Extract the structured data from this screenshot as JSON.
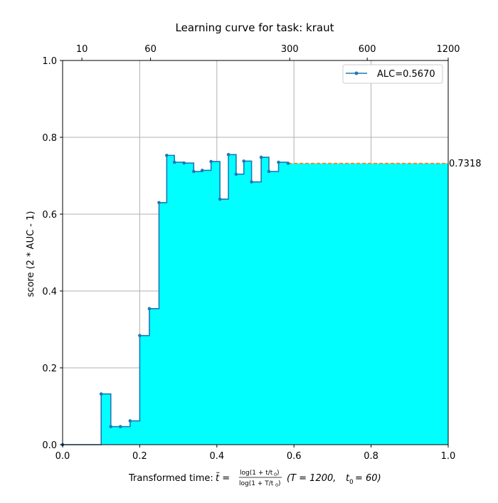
{
  "chart_data": {
    "type": "line",
    "title": "Learning curve for task: kraut",
    "ylabel": "score (2 * AUC - 1)",
    "xlabel_prefix": "Transformed time: ",
    "xlabel_fraction_num": "log(1 + t/t",
    "xlabel_fraction_den": "log(1 + T/t",
    "xlabel_suffix_T": "(T = 1200,",
    "xlabel_suffix_t0": "t",
    "xlabel_suffix_t0_value": "= 60)",
    "xlim": [
      0,
      1
    ],
    "ylim": [
      0,
      1
    ],
    "x_ticks": [
      "0.0",
      "0.2",
      "0.4",
      "0.6",
      "0.8",
      "1.0"
    ],
    "y_ticks": [
      "0.0",
      "0.2",
      "0.4",
      "0.6",
      "0.8",
      "1.0"
    ],
    "x_tick_values": [
      0,
      0.2,
      0.4,
      0.6,
      0.8,
      1.0
    ],
    "y_tick_values": [
      0,
      0.2,
      0.4,
      0.6,
      0.8,
      1.0
    ],
    "top_axis_ticks": [
      {
        "label": "10",
        "value": 0.05
      },
      {
        "label": "60",
        "value": 0.228
      },
      {
        "label": "300",
        "value": 0.589
      },
      {
        "label": "600",
        "value": 0.79
      },
      {
        "label": "1200",
        "value": 1.0
      }
    ],
    "grid": true,
    "legend_position": "top-right",
    "series": [
      {
        "name": "ALC=0.5670",
        "color": "#1f77b4",
        "fill_color": "#00ffff",
        "step": "post",
        "x": [
          0.0,
          0.1,
          0.125,
          0.15,
          0.175,
          0.2,
          0.225,
          0.25,
          0.27,
          0.29,
          0.315,
          0.34,
          0.362,
          0.385,
          0.408,
          0.43,
          0.45,
          0.47,
          0.49,
          0.515,
          0.535,
          0.56,
          0.585
        ],
        "y": [
          0.0,
          0.132,
          0.047,
          0.047,
          0.062,
          0.284,
          0.354,
          0.63,
          0.753,
          0.735,
          0.733,
          0.711,
          0.714,
          0.737,
          0.639,
          0.755,
          0.704,
          0.738,
          0.684,
          0.748,
          0.711,
          0.735,
          0.732
        ]
      }
    ],
    "final_score": {
      "value": 0.7318,
      "label": "0.7318",
      "color": "#ff7f0e"
    }
  }
}
